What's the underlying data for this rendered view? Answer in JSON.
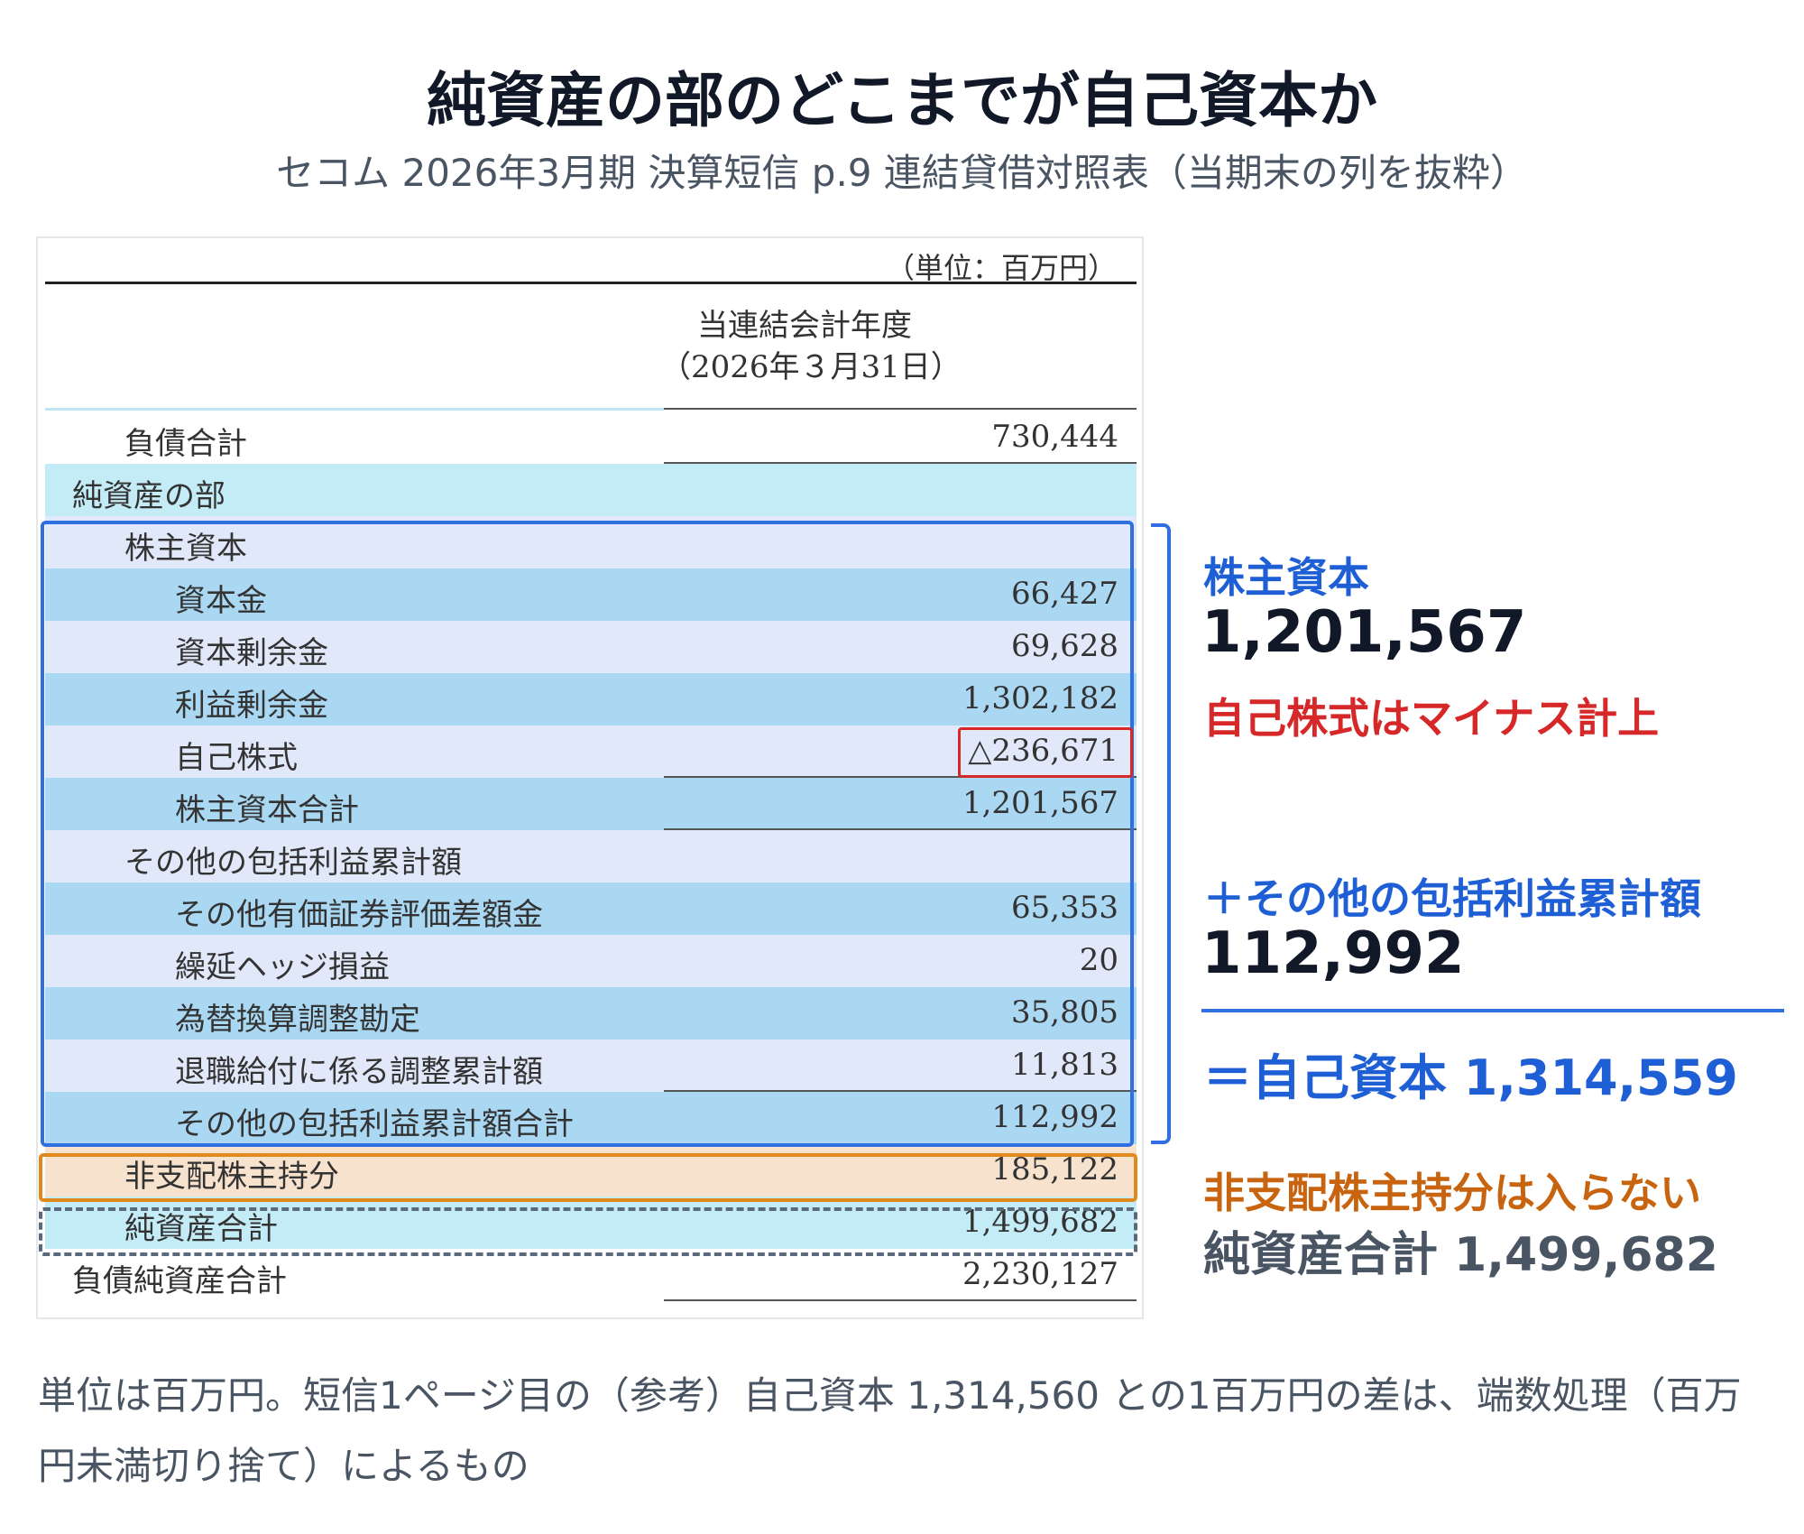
{
  "header": {
    "title": "純資産の部のどこまでが自己資本か",
    "subtitle": "セコム 2026年3月期 決算短信 p.9 連結貸借対照表（当期末の列を抜粋）"
  },
  "table": {
    "unit_note": "（単位：百万円）",
    "column_header_line1": "当連結会計年度",
    "column_header_line2": "（2026年３月31日）",
    "rows": [
      {
        "label": "負債合計",
        "value": "730,444"
      },
      {
        "label": "純資産の部",
        "value": ""
      },
      {
        "label": "株主資本",
        "value": ""
      },
      {
        "label": "資本金",
        "value": "66,427"
      },
      {
        "label": "資本剰余金",
        "value": "69,628"
      },
      {
        "label": "利益剰余金",
        "value": "1,302,182"
      },
      {
        "label": "自己株式",
        "value": "△236,671"
      },
      {
        "label": "株主資本合計",
        "value": "1,201,567"
      },
      {
        "label": "その他の包括利益累計額",
        "value": ""
      },
      {
        "label": "その他有価証券評価差額金",
        "value": "65,353"
      },
      {
        "label": "繰延ヘッジ損益",
        "value": "20"
      },
      {
        "label": "為替換算調整勘定",
        "value": "35,805"
      },
      {
        "label": "退職給付に係る調整累計額",
        "value": "11,813"
      },
      {
        "label": "その他の包括利益累計額合計",
        "value": "112,992"
      },
      {
        "label": "非支配株主持分",
        "value": "185,122"
      },
      {
        "label": "純資産合計",
        "value": "1,499,682"
      },
      {
        "label": "負債純資産合計",
        "value": "2,230,127"
      }
    ]
  },
  "annotations": {
    "shareholders_equity_label": "株主資本",
    "shareholders_equity_value": "1,201,567",
    "treasury_note": "自己株式はマイナス計上",
    "aoci_label": "＋その他の包括利益累計額",
    "aoci_value": "112,992",
    "equity_total": "＝自己資本 1,314,559",
    "nci_note": "非支配株主持分は入らない",
    "net_assets_total": "純資産合計 1,499,682"
  },
  "footnote": "単位は百万円。短信1ページ目の（参考）自己資本 1,314,560 との1百万円の差は、端数処理（百万円未満切り捨て）によるもの",
  "colors": {
    "equity_highlight": "#2f6fe0",
    "nci_highlight": "#e08a1e",
    "treasury_highlight": "#d62828",
    "net_assets_highlight": "#5a6a7e",
    "row_lavender": "#e1e8f9",
    "row_blue": "#aad8f3",
    "row_cyan": "#c4ecf6",
    "row_orange": "#f7e2cd"
  }
}
